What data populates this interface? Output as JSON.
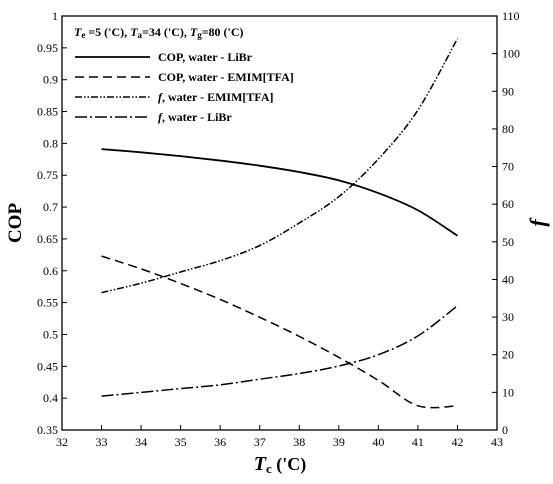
{
  "chart_data": {
    "type": "line",
    "conditions": {
      "te_sym": "T",
      "te_sub": "e",
      "te_val": " =5 ('C), ",
      "ta_sym": "T",
      "ta_sub": "a",
      "ta_val": "=34 ('C), ",
      "tg_sym": "T",
      "tg_sub": "g",
      "tg_val": "=80 ('C)"
    },
    "xlabel": {
      "sym": "T",
      "sub": "c",
      "unit": " ('C)"
    },
    "ylabel_left": "COP",
    "ylabel_right": "f",
    "xlim": [
      32,
      43
    ],
    "ylim_left": [
      0.35,
      1
    ],
    "ylim_right": [
      0,
      110
    ],
    "x_ticks": [
      "32",
      "33",
      "34",
      "35",
      "36",
      "37",
      "38",
      "39",
      "40",
      "41",
      "42",
      "43"
    ],
    "y_left_ticks": [
      "0.35",
      "0.4",
      "0.45",
      "0.5",
      "0.55",
      "0.6",
      "0.65",
      "0.7",
      "0.75",
      "0.8",
      "0.85",
      "0.9",
      "0.95",
      "1"
    ],
    "y_right_ticks": [
      "0",
      "10",
      "20",
      "30",
      "40",
      "50",
      "60",
      "70",
      "80",
      "90",
      "100",
      "110"
    ],
    "legend_position": "top-left",
    "x": [
      33,
      34,
      35,
      36,
      37,
      38,
      39,
      40,
      41,
      42
    ],
    "series": [
      {
        "name": "COP, water - LiBr",
        "name_prefix": "",
        "name_text": "COP, water - LiBr",
        "axis": "left",
        "style": "solid",
        "values": [
          0.791,
          0.786,
          0.78,
          0.773,
          0.765,
          0.755,
          0.742,
          0.722,
          0.695,
          0.655
        ]
      },
      {
        "name": "COP, water - EMIM[TFA]",
        "name_prefix": "",
        "name_text": "COP, water - EMIM[TFA]",
        "axis": "left",
        "style": "dashed",
        "values": [
          0.623,
          0.603,
          0.58,
          0.555,
          0.527,
          0.497,
          0.464,
          0.428,
          0.388,
          0.388
        ]
      },
      {
        "name": "f, water - EMIM[TFA]",
        "name_prefix": "f",
        "name_text": ", water - EMIM[TFA]",
        "axis": "right",
        "style": "dash-dot-dot",
        "values": [
          36.5,
          39,
          42,
          45,
          49,
          55,
          62,
          72,
          85,
          104
        ]
      },
      {
        "name": "f, water - LiBr",
        "name_prefix": "f",
        "name_text": ", water - LiBr",
        "axis": "right",
        "style": "dash-dot",
        "values": [
          9,
          10,
          11,
          12,
          13.5,
          15,
          17,
          20,
          25,
          33
        ]
      }
    ]
  }
}
